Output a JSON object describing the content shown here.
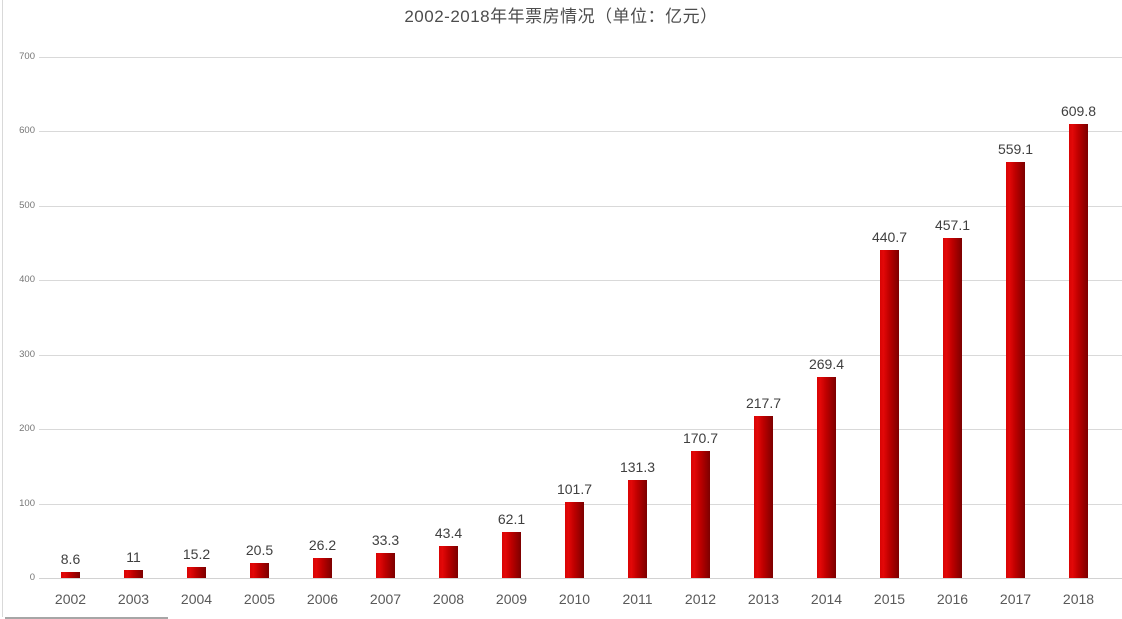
{
  "title": "2002-2018年年票房情况（单位：亿元）",
  "chart_data": {
    "type": "bar",
    "title": "2002-2018年年票房情况（单位：亿元）",
    "xlabel": "",
    "ylabel": "",
    "unit": "亿元",
    "categories": [
      "2002",
      "2003",
      "2004",
      "2005",
      "2006",
      "2007",
      "2008",
      "2009",
      "2010",
      "2011",
      "2012",
      "2013",
      "2014",
      "2015",
      "2016",
      "2017",
      "2018"
    ],
    "values": [
      8.6,
      11,
      15.2,
      20.5,
      26.2,
      33.3,
      43.4,
      62.1,
      101.7,
      131.3,
      170.7,
      217.7,
      269.4,
      440.7,
      457.1,
      559.1,
      609.8
    ],
    "value_labels": [
      "8.6",
      "11",
      "15.2",
      "20.5",
      "26.2",
      "33.3",
      "43.4",
      "62.1",
      "101.7",
      "131.3",
      "170.7",
      "217.7",
      "269.4",
      "440.7",
      "457.1",
      "559.1",
      "609.8"
    ],
    "ylim": [
      0,
      700
    ],
    "y_ticks": [
      0,
      100,
      200,
      300,
      400,
      500,
      600,
      700
    ],
    "grid": true,
    "legend": false,
    "colors": {
      "bar_gradient_left": "#d90404",
      "bar_gradient_bright": "#e30808",
      "bar_gradient_mid": "#bf0000",
      "bar_gradient_right": "#7c0000",
      "gridline": "#d9d9d9",
      "axis_line": "#d2d2d2",
      "title_text": "#4d4d4d",
      "value_label_text": "#3f3f3f",
      "x_tick_text": "#595959",
      "y_tick_text": "#757575",
      "background": "#ffffff"
    }
  }
}
